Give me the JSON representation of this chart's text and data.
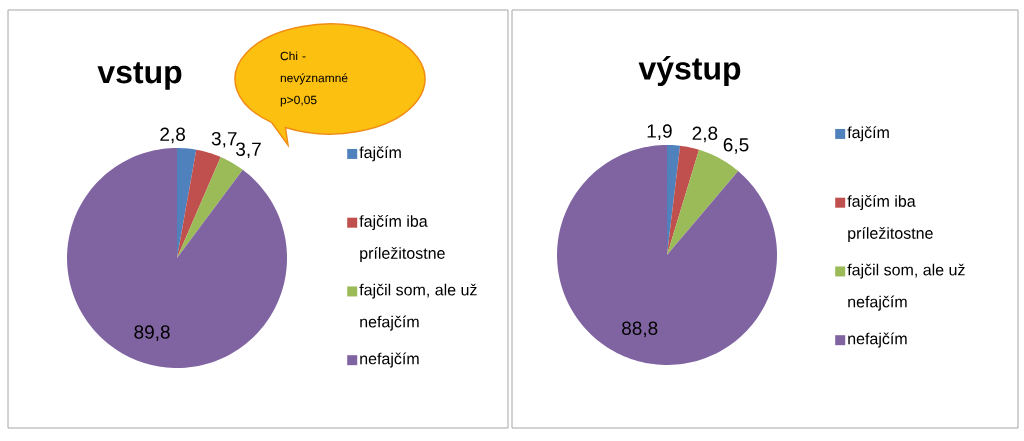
{
  "chart_data": [
    {
      "type": "pie",
      "title": "vstup",
      "categories": [
        "fajčím",
        "fajčím iba príležitostne",
        "fajčil som, ale už nefajčím",
        "nefajčím"
      ],
      "values": [
        2.8,
        3.7,
        3.7,
        89.8
      ],
      "value_labels": [
        "2,8",
        "3,7",
        "3,7",
        "89,8"
      ],
      "colors": [
        "#4f81bd",
        "#c0504d",
        "#9bbb59",
        "#8064a2"
      ],
      "legend": "right",
      "annotations": [
        "Chi - nevýznamné p>0,05"
      ]
    },
    {
      "type": "pie",
      "title": "výstup",
      "categories": [
        "fajčím",
        "fajčím iba príležitostne",
        "fajčil som, ale už nefajčím",
        "nefajčím"
      ],
      "values": [
        1.9,
        2.8,
        6.5,
        88.8
      ],
      "value_labels": [
        "1,9",
        "2,8",
        "6,5",
        "88,8"
      ],
      "colors": [
        "#4f81bd",
        "#c0504d",
        "#9bbb59",
        "#8064a2"
      ],
      "legend": "right"
    }
  ]
}
